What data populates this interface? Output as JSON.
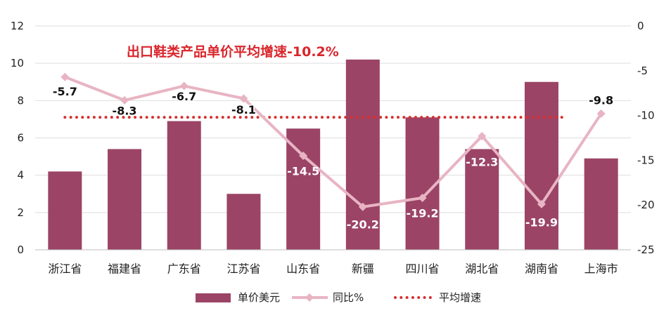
{
  "chart_data": {
    "type": "bar",
    "categories": [
      "浙江省",
      "福建省",
      "广东省",
      "江苏省",
      "山东省",
      "新疆",
      "四川省",
      "湖北省",
      "湖南省",
      "上海市"
    ],
    "series": [
      {
        "name": "单价美元",
        "type": "bar",
        "axis": "left",
        "color": "#9b4466",
        "values": [
          4.2,
          5.4,
          6.9,
          3.0,
          6.5,
          10.2,
          7.1,
          5.4,
          9.0,
          4.9
        ]
      },
      {
        "name": "同比%",
        "type": "line",
        "axis": "right",
        "color": "#e8b4c3",
        "values": [
          -5.7,
          -8.3,
          -6.7,
          -8.1,
          -14.5,
          -20.2,
          -19.2,
          -12.3,
          -19.9,
          -9.8
        ]
      },
      {
        "name": "平均增速",
        "type": "line",
        "axis": "right",
        "color": "#d62f2f",
        "values": [
          -10.2,
          -10.2,
          -10.2,
          -10.2,
          -10.2,
          -10.2,
          -10.2,
          -10.2,
          -10.2,
          -10.2
        ]
      }
    ],
    "annotation": "出口鞋类产品单价平均增速-10.2%",
    "annotation_color": "#d9262c",
    "y_left": {
      "range": [
        0,
        12
      ],
      "ticks": [
        0,
        2,
        4,
        6,
        8,
        10,
        12
      ]
    },
    "y_right": {
      "range": [
        -25,
        0
      ],
      "ticks": [
        0,
        -5,
        -10,
        -15,
        -20,
        -25
      ]
    },
    "grid": true,
    "legend_position": "bottom",
    "colors": {
      "grid": "#dedede",
      "axis_text": "#222222",
      "label_dark": "#111111",
      "label_light": "#ffffff"
    }
  }
}
